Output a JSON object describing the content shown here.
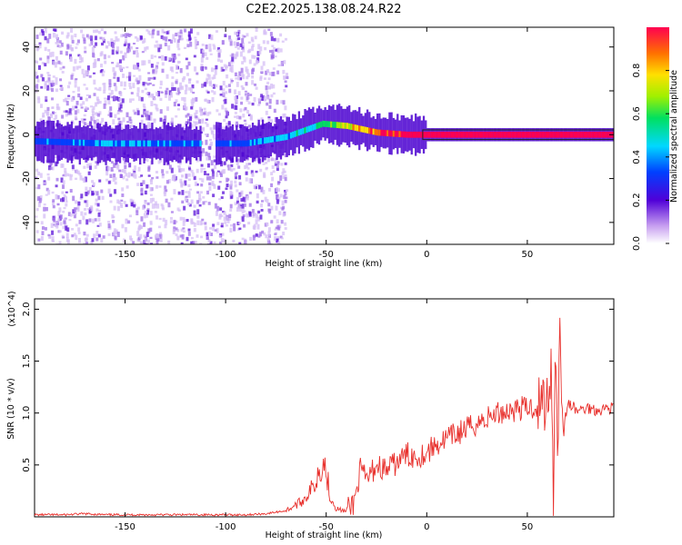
{
  "title": "C2E2.2025.138.08.24.R22",
  "spectrogram": {
    "type": "heatmap",
    "xlabel": "Height of straight line (km)",
    "ylabel": "Frequency (Hz)",
    "xlim": [
      -195,
      93
    ],
    "ylim": [
      -50,
      49
    ],
    "xticks": [
      "-150",
      "-100",
      "-50",
      "0",
      "50"
    ],
    "yticks": [
      "-40",
      "-20",
      "0",
      "20",
      "40"
    ],
    "colorbar": {
      "label": "Normalized spectral amplitude",
      "range": [
        0,
        1
      ],
      "ticks": [
        "0.0",
        "0.2",
        "0.4",
        "0.6",
        "0.8"
      ]
    },
    "ridge": [
      {
        "x": -195,
        "y": -3,
        "amp": 0.25
      },
      {
        "x": -160,
        "y": -4,
        "amp": 0.32
      },
      {
        "x": -130,
        "y": -4,
        "amp": 0.32
      },
      {
        "x": -108,
        "y": -4,
        "amp": 0.25
      },
      {
        "x": -90,
        "y": -4,
        "amp": 0.32
      },
      {
        "x": -70,
        "y": -1,
        "amp": 0.38
      },
      {
        "x": -52,
        "y": 5,
        "amp": 0.45
      },
      {
        "x": -40,
        "y": 4,
        "amp": 0.7
      },
      {
        "x": -25,
        "y": 1,
        "amp": 0.85
      },
      {
        "x": -10,
        "y": 0,
        "amp": 0.95
      },
      {
        "x": 0,
        "y": 0,
        "amp": 1.0
      },
      {
        "x": 93,
        "y": 0,
        "amp": 1.0
      }
    ]
  },
  "chart_data": {
    "type": "line",
    "title": "C2E2.2025.138.08.24.R22",
    "xlabel": "Height of straight line (km)",
    "ylabel": "SNR (10 * v/v)",
    "y_multiplier": "(x10^4)",
    "xlim": [
      -195,
      93
    ],
    "ylim": [
      0,
      2.1
    ],
    "xticks": [
      "-150",
      "-100",
      "-50",
      "0",
      "50"
    ],
    "yticks": [
      "0.5",
      "1.0",
      "1.5",
      "2.0"
    ],
    "series_color": "#e8302c",
    "x": [
      -195,
      -180,
      -170,
      -160,
      -140,
      -120,
      -100,
      -90,
      -80,
      -70,
      -62,
      -56,
      -52,
      -50,
      -48,
      -45,
      -40,
      -36,
      -33,
      -30,
      -25,
      -20,
      -15,
      -10,
      -5,
      0,
      5,
      10,
      15,
      20,
      25,
      30,
      35,
      40,
      45,
      50,
      55,
      58,
      60,
      62,
      63,
      64,
      65,
      66,
      68,
      70,
      75,
      80,
      85,
      90,
      93
    ],
    "y": [
      0.02,
      0.02,
      0.03,
      0.02,
      0.02,
      0.02,
      0.02,
      0.02,
      0.03,
      0.06,
      0.15,
      0.3,
      0.55,
      0.45,
      0.2,
      0.08,
      0.05,
      0.15,
      0.45,
      0.35,
      0.5,
      0.45,
      0.52,
      0.6,
      0.58,
      0.62,
      0.7,
      0.75,
      0.8,
      0.85,
      0.9,
      0.95,
      1.0,
      1.02,
      1.04,
      1.05,
      1.06,
      1.1,
      1.15,
      1.5,
      0.1,
      2.05,
      0.5,
      1.8,
      0.8,
      1.1,
      1.02,
      1.05,
      1.03,
      1.05,
      1.05
    ]
  }
}
